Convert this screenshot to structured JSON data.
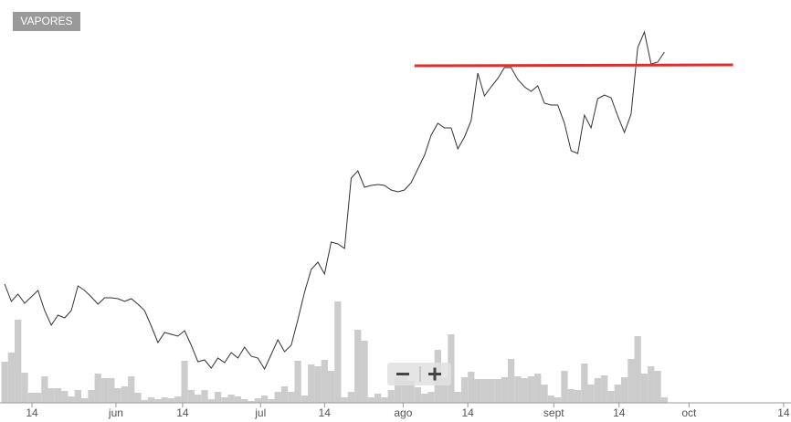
{
  "button": "VAPORES",
  "chart_data": {
    "type": "line",
    "xlim": [
      -0.7,
      118
    ],
    "ylim": [
      0,
      441
    ],
    "xticks": [
      {
        "value": 4.1,
        "label": "14"
      },
      {
        "value": 16.7,
        "label": "jun"
      },
      {
        "value": 26.7,
        "label": "14"
      },
      {
        "value": 38.4,
        "label": "jul"
      },
      {
        "value": 48,
        "label": "14"
      },
      {
        "value": 59.8,
        "label": "ago"
      },
      {
        "value": 69.5,
        "label": "14"
      },
      {
        "value": 82.4,
        "label": "sept"
      },
      {
        "value": 92.2,
        "label": "14"
      },
      {
        "value": 102.7,
        "label": "oct"
      },
      {
        "value": 116.9,
        "label": "14"
      }
    ],
    "series": [
      {
        "type": "line",
        "color": "#333333",
        "values": [
          130,
          111,
          119,
          109,
          116,
          123,
          101,
          85,
          96,
          93,
          101,
          128,
          123,
          116,
          108,
          115,
          115,
          114,
          111,
          114,
          108,
          101,
          84,
          66,
          77,
          75,
          73,
          79,
          63,
          45,
          47,
          38,
          49,
          44,
          55,
          49,
          61,
          51,
          49,
          37,
          53,
          69,
          56,
          63,
          91,
          121,
          146,
          154,
          141,
          176,
          174,
          169,
          246,
          254,
          236,
          238,
          239,
          238,
          233,
          231,
          233,
          241,
          256,
          271,
          293,
          306,
          301,
          301,
          278,
          291,
          309,
          361,
          336,
          346,
          355,
          367,
          367,
          354,
          346,
          341,
          347,
          328,
          326,
          326,
          306,
          276,
          273,
          315,
          301,
          333,
          337,
          334,
          314,
          296,
          316,
          389,
          406,
          371,
          373,
          384
        ]
      },
      {
        "type": "bar",
        "color": "#cccccc",
        "values": [
          45,
          55,
          91,
          33,
          11,
          11,
          29,
          16,
          16,
          13,
          7,
          14,
          5,
          14,
          32,
          27,
          27,
          16,
          18,
          29,
          11,
          3,
          6,
          4,
          6,
          5,
          7,
          46,
          14,
          9,
          14,
          4,
          12,
          6,
          9,
          7,
          4,
          2,
          5,
          8,
          4,
          12,
          18,
          12,
          46,
          8,
          42,
          40,
          47,
          35,
          111,
          6,
          12,
          80,
          68,
          6,
          10,
          6,
          14,
          28,
          32,
          24,
          17,
          10,
          12,
          58,
          28,
          75,
          12,
          28,
          34,
          26,
          26,
          26,
          26,
          28,
          48,
          29,
          27,
          29,
          32,
          20,
          8,
          6,
          35,
          15,
          14,
          43,
          20,
          27,
          30,
          13,
          20,
          28,
          48,
          73,
          32,
          40,
          35,
          6
        ]
      }
    ],
    "trendline": {
      "color": "#d93030",
      "x": [
        61.5,
        109.3
      ],
      "values": [
        369,
        370
      ]
    }
  }
}
